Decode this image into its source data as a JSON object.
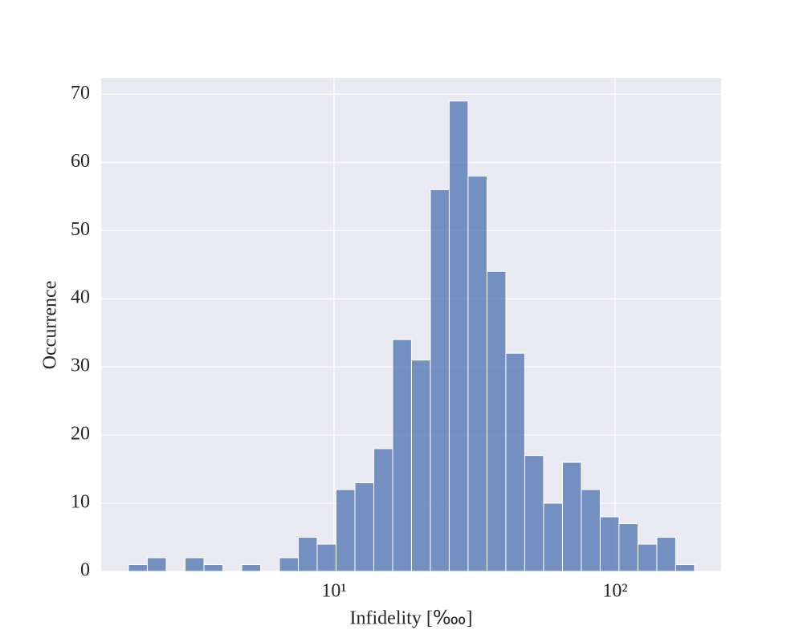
{
  "chart_data": {
    "type": "histogram",
    "xlabel": "Infidelity [‱]",
    "ylabel": "Occurrence",
    "bins": [
      1.856,
      2.166,
      2.529,
      2.951,
      3.445,
      4.021,
      4.694,
      5.478,
      6.393,
      7.462,
      8.71,
      10.165,
      11.866,
      13.85,
      16.167,
      18.867,
      22.02,
      25.7,
      30.0,
      35.02,
      40.87,
      47.7,
      55.68,
      65.0,
      75.86,
      88.53,
      103.3,
      120.6,
      140.8,
      164.3,
      191.8
    ],
    "values": [
      1,
      2,
      0,
      2,
      1,
      0,
      1,
      0,
      2,
      5,
      4,
      12,
      13,
      18,
      34,
      31,
      56,
      69,
      58,
      44,
      32,
      17,
      10,
      16,
      12,
      8,
      7,
      4,
      5,
      1
    ],
    "color": "#4c72b0",
    "xscale": "log",
    "xlim": [
      1.484,
      238.4
    ],
    "xticks": [
      {
        "value": 10,
        "label": "10¹"
      },
      {
        "value": 100,
        "label": "10²"
      }
    ],
    "ylim": [
      0,
      72.4
    ],
    "yticks": [
      0,
      10,
      20,
      30,
      40,
      50,
      60,
      70
    ],
    "grid": true
  }
}
